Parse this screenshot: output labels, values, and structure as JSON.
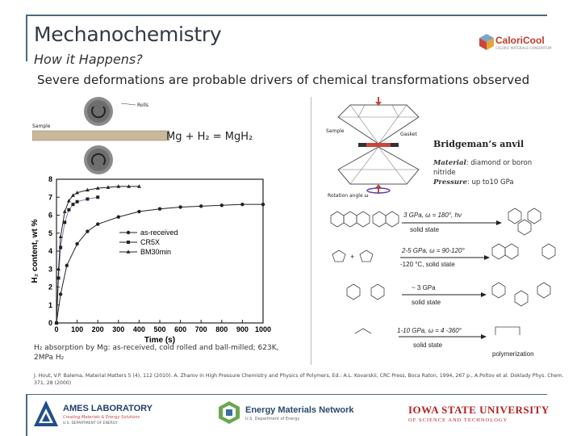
{
  "slide": {
    "title": "Mechanochemistry",
    "subtitle": "How it Happens?",
    "headline": "Severe deformations are probable drivers of chemical transformations observed"
  },
  "logos": {
    "caloricool": "CaloriCool",
    "caloricool_sub": "CALORIC MATERIALS CONSORTIUM",
    "ames": "AMES LABORATORY",
    "ames_tagline": "Creating Materials & Energy Solutions",
    "ames_dept": "U.S. DEPARTMENT OF ENERGY",
    "emn": "Energy Materials Network",
    "emn_sub": "U.S. Department of Energy",
    "isu": "IOWA STATE UNIVERSITY",
    "isu_sub": "OF SCIENCE AND TECHNOLOGY"
  },
  "left_panel": {
    "equation": "Mg + H₂ = MgH₂",
    "rolls_label": "Rolls",
    "sample_label": "Sample",
    "caption_line1": "H₂ absorption by Mg: as-received, cold rolled and ball-milled; 623K,",
    "caption_line2": "2MPa H₂"
  },
  "right_panel": {
    "title": "Bridgeman’s anvil",
    "material_label": "Material",
    "material_value": ": diamond or boron nitride",
    "pressure_label": "Pressure",
    "pressure_value": ": up to10 GPa",
    "sample_label": "Sample",
    "gasket_label": "Gasket",
    "rotation_label": "Rotation angle ω",
    "reactions": [
      {
        "condition1": "3 GPa, ω = 180°, hν",
        "condition2": "solid state"
      },
      {
        "condition1": "2-5 GPa, ω = 90-120°",
        "condition2": "-120 °C, solid state"
      },
      {
        "condition1": "~ 3 GPa",
        "condition2": "solid state"
      },
      {
        "condition1": "1-10 GPa, ω = 4 -360°",
        "condition2": "solid state"
      }
    ],
    "polymerization": "polymerization"
  },
  "references": "J. Hout, V.P. Balema, Material Matters 5 (4), 112 (2010). A. Zharov in High Pressure Chemistry and Physics of Polymers, Ed.: A.L. Kovarskii, CRC Press, Boca Raton, 1994, 267 p., A.Poltov et al. Doklady Phys. Chem. 371, 28 (2000)",
  "chart_data": {
    "type": "line",
    "xlabel": "Time (s)",
    "ylabel": "H₂ content, wt %",
    "xlim": [
      0,
      1000
    ],
    "ylim": [
      0,
      8
    ],
    "xticks": [
      0,
      100,
      200,
      300,
      400,
      500,
      600,
      700,
      800,
      900,
      1000
    ],
    "yticks": [
      0,
      1,
      2,
      3,
      4,
      5,
      6,
      7,
      8
    ],
    "legend": "right",
    "series": [
      {
        "name": "as-received",
        "marker": "circle",
        "x": [
          0,
          20,
          50,
          100,
          150,
          200,
          300,
          400,
          500,
          600,
          700,
          800,
          900,
          1000
        ],
        "values": [
          0,
          1.6,
          3.2,
          4.4,
          5.1,
          5.5,
          5.9,
          6.2,
          6.35,
          6.45,
          6.5,
          6.55,
          6.6,
          6.6
        ]
      },
      {
        "name": "CR5X",
        "marker": "square",
        "x": [
          0,
          10,
          20,
          40,
          60,
          80,
          100,
          150,
          200
        ],
        "values": [
          0,
          2.5,
          4.2,
          5.6,
          6.3,
          6.6,
          6.75,
          6.9,
          7.0
        ]
      },
      {
        "name": "BM30min",
        "marker": "triangle",
        "x": [
          0,
          10,
          20,
          40,
          60,
          80,
          100,
          150,
          200,
          250,
          300,
          350,
          400
        ],
        "values": [
          0,
          3.0,
          4.8,
          6.2,
          6.8,
          7.1,
          7.25,
          7.4,
          7.5,
          7.55,
          7.6,
          7.6,
          7.6
        ]
      }
    ]
  }
}
